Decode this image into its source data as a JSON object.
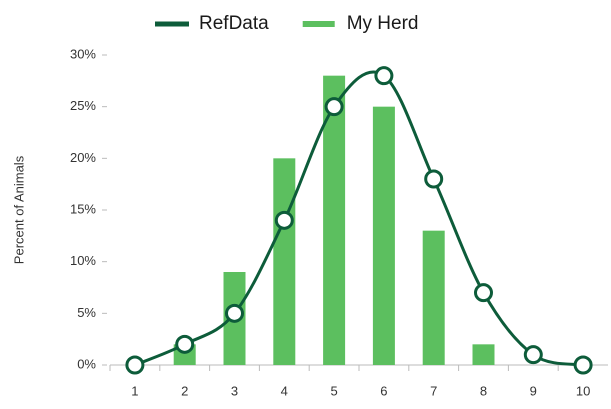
{
  "chart_data": {
    "type": "bar_line",
    "y_label": "Percent of Animals",
    "categories": [
      "1",
      "2",
      "3",
      "4",
      "5",
      "6",
      "7",
      "8",
      "9",
      "10"
    ],
    "series": [
      {
        "name": "RefData",
        "type": "line",
        "color": "#0d5c3a",
        "values": [
          0,
          2,
          5,
          14,
          25,
          28,
          18,
          7,
          1,
          0
        ]
      },
      {
        "name": "My Herd",
        "type": "bar",
        "color": "#5cbf5f",
        "values": [
          0,
          2,
          9,
          20,
          28,
          25,
          13,
          2,
          0,
          0
        ]
      }
    ],
    "ylim": [
      0,
      30
    ],
    "yticks": [
      {
        "value": 0,
        "label": "0%"
      },
      {
        "value": 5,
        "label": "5%"
      },
      {
        "value": 10,
        "label": "10%"
      },
      {
        "value": 15,
        "label": "15%"
      },
      {
        "value": 20,
        "label": "20%"
      },
      {
        "value": 25,
        "label": "25%"
      },
      {
        "value": 30,
        "label": "30%"
      }
    ],
    "grid": false,
    "legend": "top"
  }
}
